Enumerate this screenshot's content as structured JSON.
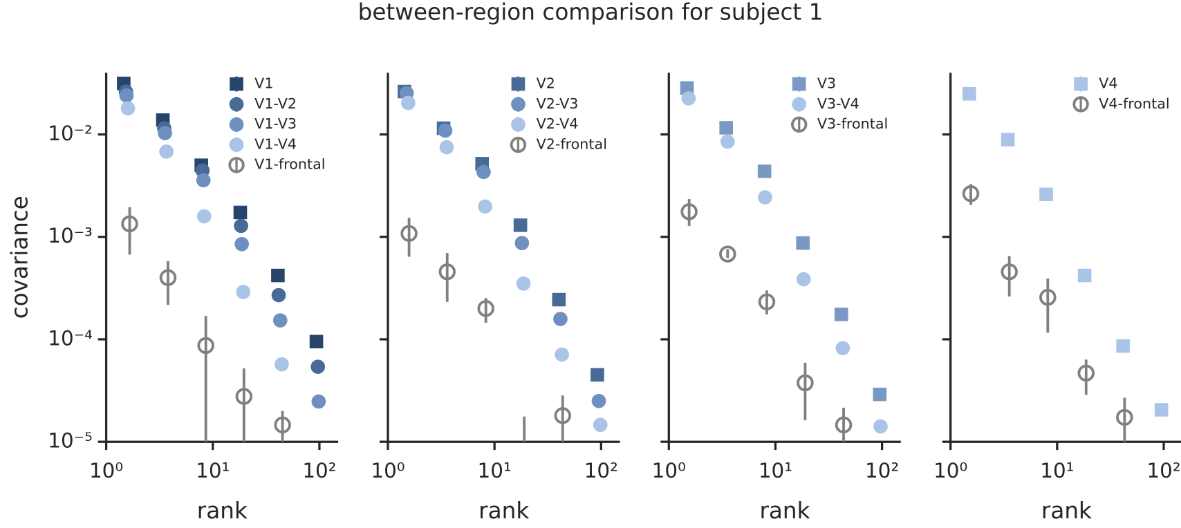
{
  "title": "between-region comparison for subject 1",
  "chart_data": [
    {
      "type": "scatter",
      "xlabel": "rank",
      "ylabel": "covariance",
      "log_x": true,
      "log_y": true,
      "legend": "upper right",
      "xlim": [
        1,
        150
      ],
      "ylim": [
        1e-05,
        0.04
      ],
      "xticks": [
        {
          "value": 1,
          "label": "10⁰"
        },
        {
          "value": 10,
          "label": "10¹"
        },
        {
          "value": 100,
          "label": "10²"
        }
      ],
      "yticks": [
        {
          "value": 1e-05,
          "label": "10⁻⁵"
        },
        {
          "value": 0.0001,
          "label": "10⁻⁴"
        },
        {
          "value": 0.001,
          "label": "10⁻³"
        },
        {
          "value": 0.01,
          "label": "10⁻²"
        }
      ],
      "series": [
        {
          "name": "V1",
          "color": "#27456b",
          "marker": "square",
          "x": [
            1.46,
            3.4,
            7.8,
            18.1,
            40.8,
            93.7
          ],
          "values": [
            0.0315,
            0.0138,
            0.005,
            0.00173,
            0.00042,
            9.5e-05
          ]
        },
        {
          "name": "V1-V2",
          "color": "#476a97",
          "marker": "circle",
          "x": [
            1.53,
            3.5,
            8.0,
            18.4,
            41.5,
            96.8
          ],
          "values": [
            0.0262,
            0.0115,
            0.00445,
            0.00128,
            0.00027,
            5.4e-05
          ]
        },
        {
          "name": "V1-V3",
          "color": "#6d90c0",
          "marker": "circle",
          "x": [
            1.55,
            3.56,
            8.17,
            18.7,
            42.9,
            98.4
          ],
          "values": [
            0.024,
            0.0103,
            0.00357,
            0.00085,
            0.000153,
            2.47e-05
          ]
        },
        {
          "name": "V1-V4",
          "color": "#a9c4e6",
          "marker": "circle",
          "x": [
            1.6,
            3.67,
            8.3,
            19.3,
            44.3
          ],
          "values": [
            0.018,
            0.0068,
            0.00159,
            0.00029,
            5.7e-05
          ]
        },
        {
          "name": "V1-frontal",
          "color": "#808080",
          "marker": "open-circle",
          "x": [
            1.66,
            3.8,
            8.6,
            19.6,
            45.1
          ],
          "values": [
            0.00134,
            0.0004,
            8.7e-05,
            2.77e-05,
            1.46e-05
          ],
          "lower": [
            0.00067,
            0.000217,
            1e-05,
            1e-05,
            1e-05
          ],
          "upper": [
            0.00195,
            0.00058,
            0.000169,
            5.2e-05,
            2e-05
          ]
        }
      ]
    },
    {
      "type": "scatter",
      "xlabel": "rank",
      "log_x": true,
      "log_y": true,
      "legend": "upper right",
      "xlim": [
        1,
        150
      ],
      "ylim": [
        1e-05,
        0.04
      ],
      "xticks": [
        {
          "value": 1,
          "label": "10⁰"
        },
        {
          "value": 10,
          "label": "10¹"
        },
        {
          "value": 100,
          "label": "10²"
        }
      ],
      "yticks": [
        1e-05,
        0.0001,
        0.001,
        0.01
      ],
      "series": [
        {
          "name": "V2",
          "color": "#476a97",
          "marker": "square",
          "x": [
            1.43,
            3.33,
            7.65,
            17.5,
            40.2,
            92.2
          ],
          "values": [
            0.0262,
            0.0115,
            0.00518,
            0.0013,
            0.000244,
            4.5e-05
          ]
        },
        {
          "name": "V2-V3",
          "color": "#6d90c0",
          "marker": "circle",
          "x": [
            1.5,
            3.45,
            7.9,
            18.1,
            41.5,
            95.2
          ],
          "values": [
            0.0253,
            0.0109,
            0.0043,
            0.00087,
            0.000158,
            2.5e-05
          ]
        },
        {
          "name": "V2-V4",
          "color": "#a9c4e6",
          "marker": "circle",
          "x": [
            1.55,
            3.56,
            8.17,
            18.7,
            42.9,
            98.4
          ],
          "values": [
            0.0203,
            0.0075,
            0.00198,
            0.00035,
            7.1e-05,
            1.46e-05
          ]
        },
        {
          "name": "V2-frontal",
          "color": "#808080",
          "marker": "open-circle",
          "x": [
            1.58,
            3.6,
            8.3,
            19.0,
            43.6
          ],
          "values": [
            0.00108,
            0.000456,
            0.0002,
            null,
            1.8e-05
          ],
          "lower": [
            0.00064,
            0.000232,
            0.000145,
            null,
            1e-05
          ],
          "upper": [
            0.00154,
            0.000695,
            0.000253,
            1.76e-05,
            2.83e-05
          ]
        }
      ]
    },
    {
      "type": "scatter",
      "xlabel": "rank",
      "log_x": true,
      "log_y": true,
      "legend": "upper right",
      "xlim": [
        1,
        150
      ],
      "ylim": [
        1e-05,
        0.04
      ],
      "xticks": [
        {
          "value": 1,
          "label": "10⁰"
        },
        {
          "value": 10,
          "label": "10¹"
        },
        {
          "value": 100,
          "label": "10²"
        }
      ],
      "yticks": [
        1e-05,
        0.0001,
        0.001,
        0.01
      ],
      "series": [
        {
          "name": "V3",
          "color": "#7a98c4",
          "marker": "square",
          "x": [
            1.48,
            3.45,
            7.9,
            18.1,
            41.5,
            95.2
          ],
          "values": [
            0.0284,
            0.0116,
            0.00437,
            0.00087,
            0.000175,
            2.9e-05
          ]
        },
        {
          "name": "V3-V4",
          "color": "#a9c4e6",
          "marker": "circle",
          "x": [
            1.53,
            3.56,
            8.0,
            18.4,
            42.9,
            96.8
          ],
          "values": [
            0.0225,
            0.0085,
            0.00243,
            0.000386,
            8.2e-05,
            1.41e-05
          ]
        },
        {
          "name": "V3-frontal",
          "color": "#808080",
          "marker": "open-circle",
          "x": [
            1.55,
            3.56,
            8.3,
            19.0,
            43.6
          ],
          "values": [
            0.00176,
            0.00068,
            0.000232,
            3.76e-05,
            1.46e-05
          ],
          "lower": [
            0.00128,
            0.00062,
            0.000175,
            1.62e-05,
            1e-05
          ],
          "upper": [
            0.00234,
            0.00076,
            0.0003,
            5.9e-05,
            2.15e-05
          ]
        }
      ]
    },
    {
      "type": "scatter",
      "xlabel": "rank",
      "log_x": true,
      "log_y": true,
      "legend": "upper right",
      "xlim": [
        1,
        150
      ],
      "ylim": [
        1e-05,
        0.04
      ],
      "xticks": [
        {
          "value": 1,
          "label": "10⁰"
        },
        {
          "value": 10,
          "label": "10¹"
        },
        {
          "value": 100,
          "label": "10²"
        }
      ],
      "yticks": [
        1e-05,
        0.0001,
        0.001,
        0.01
      ],
      "series": [
        {
          "name": "V4",
          "color": "#a9c4e6",
          "marker": "square",
          "x": [
            1.5,
            3.45,
            7.9,
            18.1,
            41.5,
            95.2
          ],
          "values": [
            0.0249,
            0.0089,
            0.0026,
            0.00042,
            8.6e-05,
            2.05e-05
          ]
        },
        {
          "name": "V4-frontal",
          "color": "#808080",
          "marker": "open-circle",
          "x": [
            1.55,
            3.56,
            8.17,
            18.7,
            42.9
          ],
          "values": [
            0.00264,
            0.000456,
            0.000257,
            4.68e-05,
            1.73e-05
          ],
          "lower": [
            0.00205,
            0.000262,
            0.000116,
            2.87e-05,
            1e-05
          ],
          "upper": [
            0.00328,
            0.00065,
            0.000392,
            6.34e-05,
            2.69e-05
          ]
        }
      ]
    }
  ]
}
